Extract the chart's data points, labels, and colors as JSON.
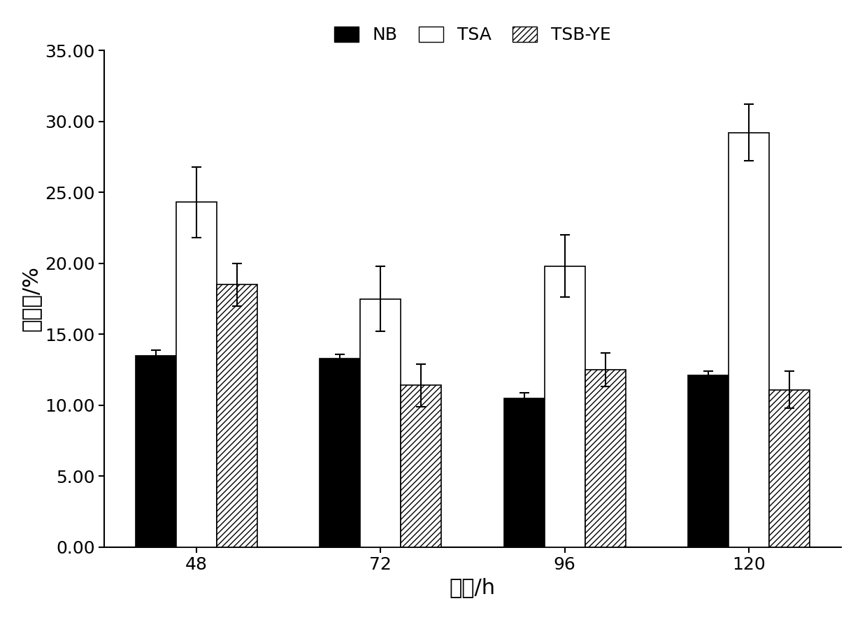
{
  "categories": [
    48,
    72,
    96,
    120
  ],
  "series": {
    "NB": {
      "values": [
        13.5,
        13.3,
        10.5,
        12.1
      ],
      "errors": [
        0.4,
        0.3,
        0.4,
        0.3
      ],
      "color": "#000000",
      "hatch": null,
      "edgecolor": "#000000",
      "label": "NB"
    },
    "TSA": {
      "values": [
        24.3,
        17.5,
        19.8,
        29.2
      ],
      "errors": [
        2.5,
        2.3,
        2.2,
        2.0
      ],
      "color": "#ffffff",
      "hatch": null,
      "edgecolor": "#000000",
      "label": "TSA"
    },
    "TSB-YE": {
      "values": [
        18.5,
        11.4,
        12.5,
        11.1
      ],
      "errors": [
        1.5,
        1.5,
        1.2,
        1.3
      ],
      "color": "#ffffff",
      "hatch": "////",
      "edgecolor": "#000000",
      "label": "TSB-YE"
    }
  },
  "xlabel": "时间/h",
  "ylabel": "抑菌率/%",
  "ylim": [
    0,
    35
  ],
  "yticks": [
    0.0,
    5.0,
    10.0,
    15.0,
    20.0,
    25.0,
    30.0,
    35.0
  ],
  "bar_width": 0.22,
  "xlabel_fontsize": 22,
  "ylabel_fontsize": 22,
  "tick_fontsize": 18,
  "legend_fontsize": 18,
  "background_color": "#ffffff",
  "capsize": 5
}
